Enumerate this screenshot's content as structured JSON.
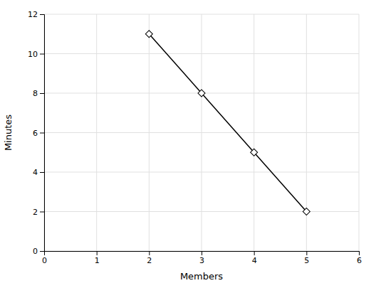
{
  "chart_data": {
    "type": "line",
    "x": [
      2,
      3,
      4,
      5
    ],
    "values": [
      11,
      8,
      5,
      2
    ],
    "xlabel": "Members",
    "ylabel": "Minutes",
    "xlim": [
      0,
      6
    ],
    "ylim": [
      0,
      12
    ],
    "xticks": [
      0,
      1,
      2,
      3,
      4,
      5,
      6
    ],
    "yticks": [
      0,
      2,
      4,
      6,
      8,
      10,
      12
    ],
    "color": "#000000",
    "marker": "diamond",
    "grid": true
  }
}
